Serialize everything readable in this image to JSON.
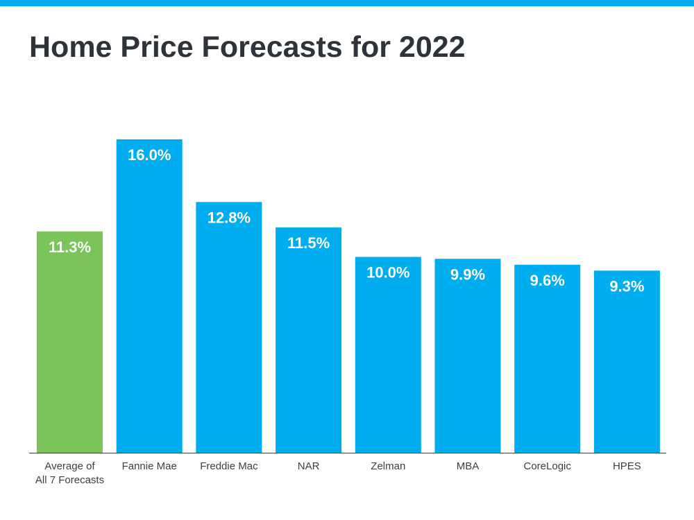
{
  "colors": {
    "top_bar": "#00aeef",
    "bar_blue": "#00aeef",
    "bar_green": "#7ac45a",
    "axis": "#3a3f44"
  },
  "chart_data": {
    "type": "bar",
    "title": "Home Price Forecasts for 2022",
    "xlabel": "",
    "ylabel": "",
    "ylim": [
      0,
      16.5
    ],
    "grid": false,
    "legend": "none",
    "categories": [
      [
        "Average of",
        "All 7 Forecasts"
      ],
      [
        "Fannie Mae"
      ],
      [
        "Freddie Mac"
      ],
      [
        "NAR"
      ],
      [
        "Zelman"
      ],
      [
        "MBA"
      ],
      [
        "CoreLogic"
      ],
      [
        "HPES"
      ]
    ],
    "values": [
      11.3,
      16.0,
      12.8,
      11.5,
      10.0,
      9.9,
      9.6,
      9.3
    ],
    "data_labels": [
      "11.3%",
      "16.0%",
      "12.8%",
      "11.5%",
      "10.0%",
      "9.9%",
      "9.6%",
      "9.3%"
    ],
    "highlight": [
      true,
      false,
      false,
      false,
      false,
      false,
      false,
      false
    ]
  }
}
